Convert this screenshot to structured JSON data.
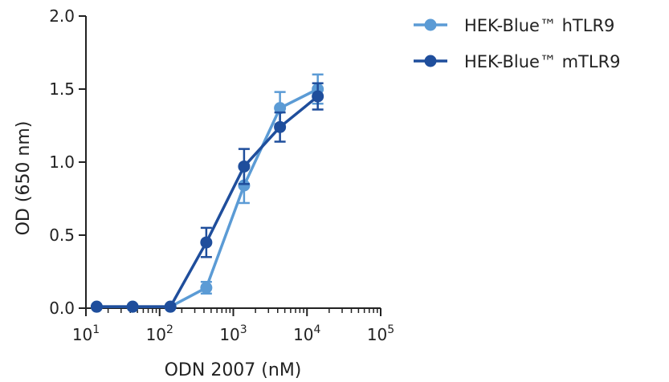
{
  "chart_data": {
    "type": "line",
    "title": "",
    "xlabel": "ODN 2007 (nM)",
    "ylabel": "OD (650 nm)",
    "x_scale": "log",
    "xlim": [
      10,
      100000
    ],
    "ylim": [
      0,
      2.0
    ],
    "x_ticks": [
      {
        "value": 10,
        "base": "10",
        "exp": "1"
      },
      {
        "value": 100,
        "base": "10",
        "exp": "2"
      },
      {
        "value": 1000,
        "base": "10",
        "exp": "3"
      },
      {
        "value": 10000,
        "base": "10",
        "exp": "4"
      },
      {
        "value": 100000,
        "base": "10",
        "exp": "5"
      }
    ],
    "y_ticks": [
      {
        "value": 0.0,
        "label": "0.0"
      },
      {
        "value": 0.5,
        "label": "0.5"
      },
      {
        "value": 1.0,
        "label": "1.0"
      },
      {
        "value": 1.5,
        "label": "1.5"
      },
      {
        "value": 2.0,
        "label": "2.0"
      }
    ],
    "legend_position": "top-right",
    "series": [
      {
        "name": "HEK-Blue™ hTLR9",
        "color": "#5b9bd5",
        "x": [
          14,
          43,
          140,
          430,
          1400,
          4300,
          14000
        ],
        "y": [
          0.01,
          0.01,
          0.01,
          0.14,
          0.84,
          1.37,
          1.5
        ],
        "err": [
          0.01,
          0.01,
          0.01,
          0.04,
          0.12,
          0.11,
          0.1
        ]
      },
      {
        "name": "HEK-Blue™ mTLR9",
        "color": "#1f4e9c",
        "x": [
          14,
          43,
          140,
          430,
          1400,
          4300,
          14000
        ],
        "y": [
          0.01,
          0.01,
          0.01,
          0.45,
          0.97,
          1.24,
          1.45
        ],
        "err": [
          0.01,
          0.01,
          0.01,
          0.1,
          0.12,
          0.1,
          0.09
        ]
      }
    ]
  }
}
